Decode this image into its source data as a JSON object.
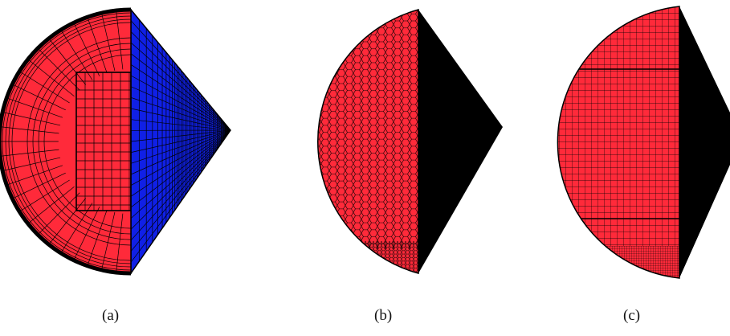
{
  "colors": {
    "red": "#ff2a3a",
    "blue": "#1020e6",
    "black": "#000000",
    "mesh_line": "#000000",
    "background": "#ffffff"
  },
  "panels": [
    {
      "id": "a",
      "label": "(a)",
      "left_fill": "red",
      "right_fill": "blue",
      "mesh_style": "structured-o-grid"
    },
    {
      "id": "b",
      "label": "(b)",
      "left_fill": "red",
      "right_fill": "black",
      "mesh_style": "polyhedral"
    },
    {
      "id": "c",
      "label": "(c)",
      "left_fill": "red",
      "right_fill": "black",
      "mesh_style": "cartesian-cut-cell"
    }
  ]
}
